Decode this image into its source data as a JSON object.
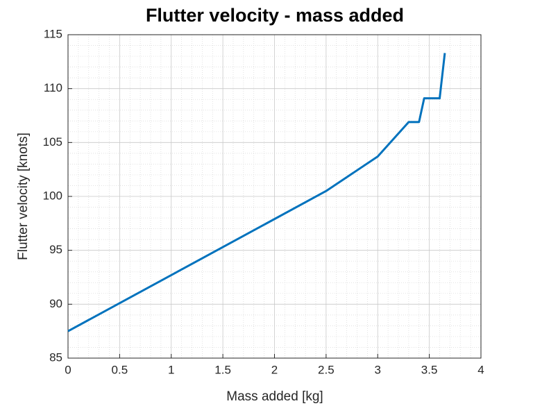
{
  "chart_data": {
    "type": "line",
    "title": "Flutter velocity - mass added",
    "x_label": "Mass added [kg]",
    "y_label": "Flutter velocity [knots]",
    "x": [
      0,
      2.5,
      3,
      3.3,
      3.4,
      3.45,
      3.6,
      3.65
    ],
    "series": [
      {
        "name": "Flutter velocity",
        "color": "#0072BD",
        "values": [
          87.5,
          100.5,
          103.7,
          106.9,
          106.9,
          109.1,
          109.1,
          113.3
        ]
      }
    ],
    "xlim": [
      0,
      4
    ],
    "xticks": [
      0,
      0.5,
      1,
      1.5,
      2,
      2.5,
      3,
      3.5,
      4
    ],
    "ylim": [
      85,
      115
    ],
    "yticks": [
      85,
      90,
      95,
      100,
      105,
      110,
      115
    ],
    "grid": true,
    "minor_grid": true,
    "legend": false
  }
}
